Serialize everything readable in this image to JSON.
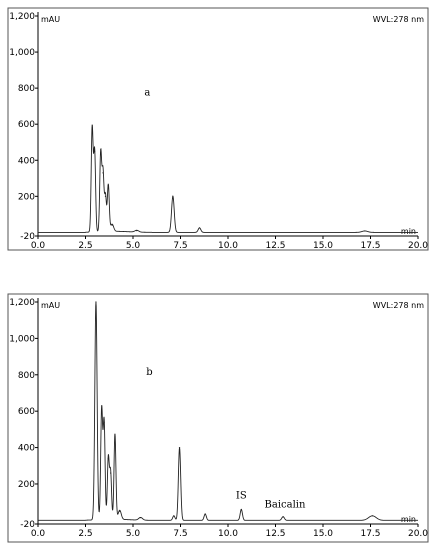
{
  "chart_data": [
    {
      "type": "line",
      "panel_label": "a",
      "ylabel": "mAU",
      "xlabel": "min",
      "wavelength": "WVL:278 nm",
      "xlim": [
        0,
        20
      ],
      "ylim": [
        -20,
        1200
      ],
      "y_ticks": [
        -20,
        200,
        400,
        600,
        800,
        "1,000",
        "1,200"
      ],
      "x_ticks": [
        "0.0",
        "2.5",
        "5.0",
        "7.5",
        "10.0",
        "12.5",
        "15.0",
        "17.5",
        "20.0"
      ],
      "grid": false,
      "baseline": 0,
      "peaks": [
        {
          "rt": 2.85,
          "height": 580,
          "width": 0.05
        },
        {
          "rt": 2.98,
          "height": 450,
          "width": 0.05
        },
        {
          "rt": 3.3,
          "height": 440,
          "width": 0.05
        },
        {
          "rt": 3.42,
          "height": 330,
          "width": 0.05
        },
        {
          "rt": 3.55,
          "height": 200,
          "width": 0.05
        },
        {
          "rt": 3.7,
          "height": 260,
          "width": 0.05
        },
        {
          "rt": 3.9,
          "height": 40,
          "width": 0.08
        },
        {
          "rt": 5.2,
          "height": 10,
          "width": 0.1
        },
        {
          "rt": 7.1,
          "height": 200,
          "width": 0.07
        },
        {
          "rt": 8.5,
          "height": 25,
          "width": 0.07
        },
        {
          "rt": 17.2,
          "height": 8,
          "width": 0.15
        }
      ],
      "annotations": []
    },
    {
      "type": "line",
      "panel_label": "b",
      "ylabel": "mAU",
      "xlabel": "min",
      "wavelength": "WVL:278 nm",
      "xlim": [
        0,
        20
      ],
      "ylim": [
        -20,
        1200
      ],
      "y_ticks": [
        -20,
        200,
        400,
        600,
        800,
        "1,000",
        "1,200"
      ],
      "x_ticks": [
        "0.0",
        "2.5",
        "5.0",
        "7.5",
        "10.0",
        "12.5",
        "15.0",
        "17.5",
        "20.0"
      ],
      "grid": false,
      "baseline": 0,
      "peaks": [
        {
          "rt": 3.05,
          "height": 1200,
          "width": 0.06
        },
        {
          "rt": 3.35,
          "height": 610,
          "width": 0.05
        },
        {
          "rt": 3.48,
          "height": 540,
          "width": 0.05
        },
        {
          "rt": 3.7,
          "height": 340,
          "width": 0.05
        },
        {
          "rt": 3.82,
          "height": 260,
          "width": 0.05
        },
        {
          "rt": 4.05,
          "height": 470,
          "width": 0.05
        },
        {
          "rt": 4.3,
          "height": 50,
          "width": 0.08
        },
        {
          "rt": 5.4,
          "height": 15,
          "width": 0.1
        },
        {
          "rt": 7.15,
          "height": 25,
          "width": 0.06
        },
        {
          "rt": 7.45,
          "height": 400,
          "width": 0.06
        },
        {
          "rt": 8.8,
          "height": 35,
          "width": 0.06
        },
        {
          "rt": 10.7,
          "height": 60,
          "width": 0.06
        },
        {
          "rt": 12.9,
          "height": 20,
          "width": 0.07
        },
        {
          "rt": 17.6,
          "height": 25,
          "width": 0.2
        }
      ],
      "annotations": [
        {
          "text": "IS",
          "x": 10.7,
          "y": 120
        },
        {
          "text": "Baicalin",
          "x": 13.0,
          "y": 70
        }
      ]
    }
  ]
}
